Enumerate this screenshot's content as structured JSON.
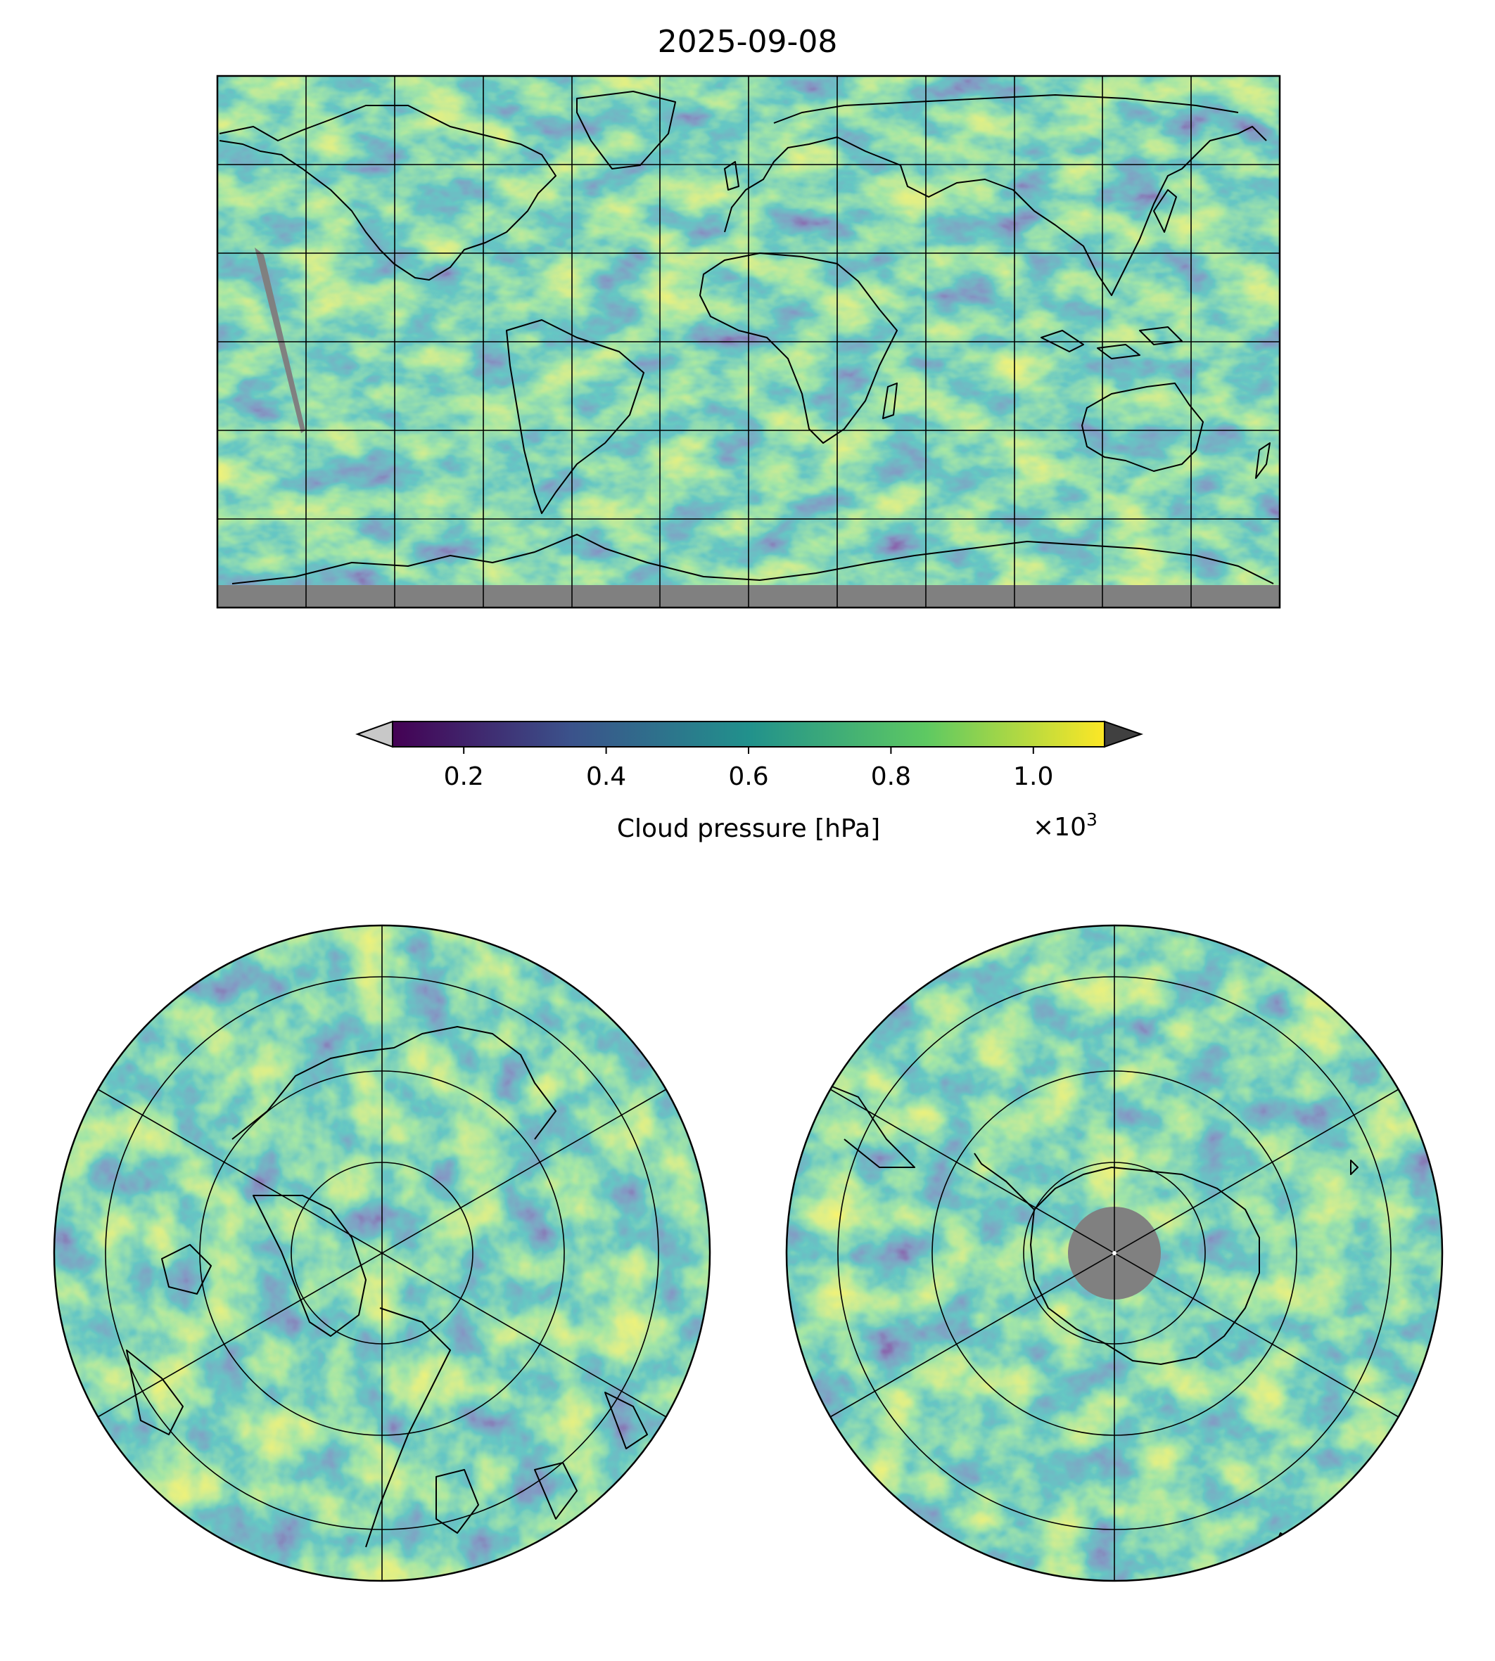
{
  "figure": {
    "title": "2025-09-08"
  },
  "colorbar": {
    "label": "Cloud pressure [hPa]",
    "offset_text": "×10",
    "offset_exponent": "3",
    "ticks": [
      {
        "value": 0.2,
        "label": "0.2"
      },
      {
        "value": 0.4,
        "label": "0.4"
      },
      {
        "value": 0.6,
        "label": "0.6"
      },
      {
        "value": 0.8,
        "label": "0.8"
      },
      {
        "value": 1.0,
        "label": "1.0"
      }
    ],
    "range": [
      0.1,
      1.1
    ],
    "colormap": "viridis",
    "extend": "both",
    "under_color": "#c8c8c8",
    "over_color": "#404040"
  },
  "maps": {
    "global": {
      "projection": "plate-carree",
      "missing_color": "#808080"
    },
    "north_pole": {
      "projection": "north-polar-stereographic"
    },
    "south_pole": {
      "projection": "south-polar-stereographic",
      "missing_color": "#808080"
    }
  },
  "colors": {
    "viridis_stops": [
      "#440154",
      "#3b528b",
      "#21918c",
      "#5ec962",
      "#fde725"
    ],
    "coastline": "#000000",
    "gridline": "#000000"
  }
}
